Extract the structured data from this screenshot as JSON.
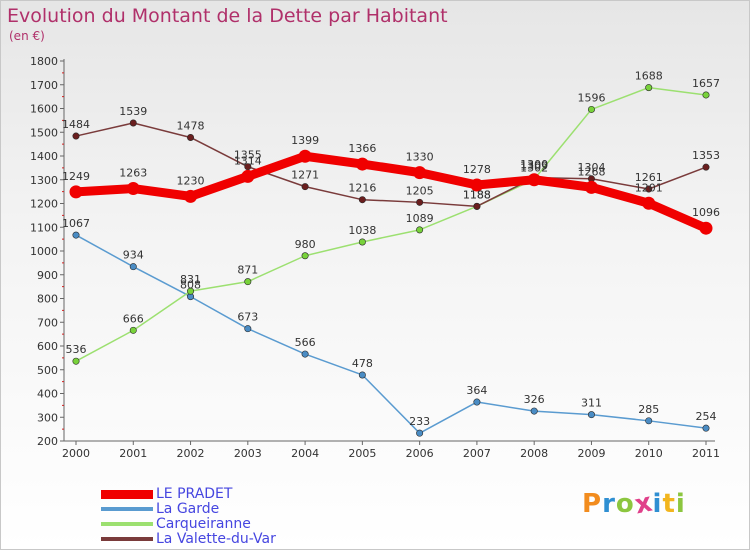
{
  "chart_data": {
    "type": "line",
    "title": "Evolution du Montant de la Dette par Habitant",
    "subtitle": "(en €)",
    "xlabel": "",
    "ylabel": "",
    "categories": [
      "2000",
      "2001",
      "2002",
      "2003",
      "2004",
      "2005",
      "2006",
      "2007",
      "2008",
      "2009",
      "2010",
      "2011"
    ],
    "ylim": [
      200,
      1800
    ],
    "yticks": [
      200,
      300,
      400,
      500,
      600,
      700,
      800,
      900,
      1000,
      1100,
      1200,
      1300,
      1400,
      1500,
      1600,
      1700,
      1800
    ],
    "grid": false,
    "legend_position": "bottom-left",
    "series": [
      {
        "name": "La Garde",
        "color": "#5a9bd0",
        "dot": "#4a8cc4",
        "values": [
          1067,
          934,
          808,
          673,
          566,
          478,
          233,
          364,
          326,
          311,
          285,
          254
        ]
      },
      {
        "name": "Carqueiranne",
        "color": "#9ce070",
        "dot": "#78d23a",
        "values": [
          536,
          666,
          831,
          871,
          980,
          1038,
          1089,
          1188,
          1302,
          1596,
          1688,
          1657
        ]
      },
      {
        "name": "La Valette-du-Var",
        "color": "#7a3b3b",
        "dot": "#6a1e1e",
        "values": [
          1484,
          1539,
          1478,
          1355,
          1271,
          1216,
          1205,
          1188,
          1309,
          1304,
          1261,
          1353
        ]
      },
      {
        "name": "LE PRADET",
        "color": "#f00000",
        "dot": "#f00000",
        "bold": true,
        "values": [
          1249,
          1263,
          1230,
          1314,
          1399,
          1366,
          1330,
          1278,
          1300,
          1268,
          1201,
          1096
        ]
      }
    ]
  },
  "legend": {
    "items": [
      {
        "label": "LE PRADET",
        "color": "#f00000",
        "bold": true
      },
      {
        "label": "La Garde",
        "color": "#5a9bd0"
      },
      {
        "label": "Carqueiranne",
        "color": "#9ce070"
      },
      {
        "label": "La Valette-du-Var",
        "color": "#7a3b3b"
      }
    ]
  },
  "logo": {
    "text": "Proxiti",
    "letters": [
      {
        "ch": "P",
        "color": "#f28c1e"
      },
      {
        "ch": "r",
        "color": "#2f8fd2"
      },
      {
        "ch": "o",
        "color": "#8cc63f"
      },
      {
        "ch": "x",
        "color": "#e0408a"
      },
      {
        "ch": "i",
        "color": "#2f8fd2"
      },
      {
        "ch": "t",
        "color": "#f2b51e"
      },
      {
        "ch": "i",
        "color": "#8cc63f"
      }
    ]
  }
}
